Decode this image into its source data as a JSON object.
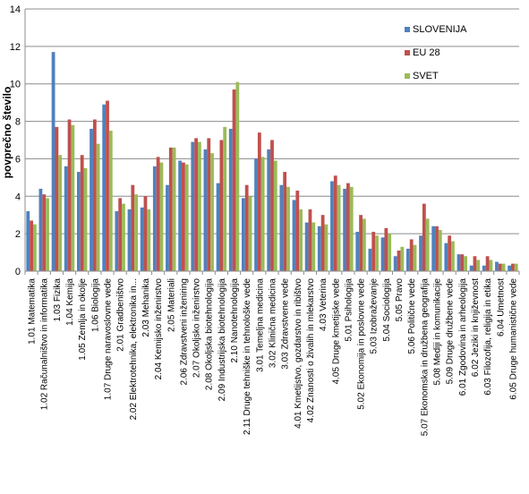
{
  "chart_data": {
    "type": "bar",
    "title": "",
    "xlabel": "",
    "ylabel": "povprečno število",
    "ylim": [
      0,
      14
    ],
    "yticks": [
      0,
      2,
      4,
      6,
      8,
      10,
      12,
      14
    ],
    "grid": true,
    "legend_position": "top-right",
    "categories": [
      "1.01 Matematika",
      "1.02 Računalništvo in informatika",
      "1.03 Fizika",
      "1.04 Kemija",
      "1.05 Zemlja in okolje",
      "1.06 Biologija",
      "1.07 Druge naravoslovne vede",
      "2.01 Gradbeništvo",
      "2.02 Elektrotehnika, elektronika in...",
      "2.03 Mehanika",
      "2.04 Kemijsko inženirstvo",
      "2.05 Materiali",
      "2.06 Zdravstveni inženiring",
      "2.07 Okoljsko inženirstvo",
      "2.08 Okoljska biotehnologija",
      "2.09 Industrijska biotehnologija",
      "2.10 Nanotehnologija",
      "2.11 Druge tehniške in tehnološke vede",
      "3.01 Temeljna medicina",
      "3.02 Klinična medicina",
      "3.03 Zdravstvene vede",
      "4.01 Kmetijstvo, gozdarstvo in ribištvo",
      "4.02 Znanosti o živalih in mlekarstvo",
      "4.03 Veterina",
      "4.05 Druge kmetijske vede",
      "5.01 Psihologija",
      "5.02 Ekonomija in poslovne vede",
      "5.03 Izobraževanje",
      "5.04 Sociologija",
      "5.05 Pravo",
      "5.06 Politične vede",
      "5.07 Ekonomska in družbena geografija",
      "5.08 Mediji in komunikacije",
      "5.09 Druge družbene vede",
      "6.01 Zgodovina in arheologija",
      "6.02 Jeziki in književnost",
      "6.03 Filozofija, religija in etika",
      "6.04 Umetnost",
      "6.05 Druge humanistične vede"
    ],
    "series": [
      {
        "name": "SLOVENIJA",
        "color": "#4F81BD",
        "values": [
          3.2,
          4.4,
          11.7,
          5.6,
          5.3,
          7.6,
          8.9,
          3.2,
          3.3,
          3.4,
          5.6,
          4.6,
          5.9,
          6.9,
          6.5,
          4.7,
          7.6,
          3.9,
          6.0,
          6.5,
          4.6,
          3.8,
          2.6,
          2.4,
          4.8,
          4.4,
          2.1,
          1.2,
          1.8,
          0.8,
          1.2,
          1.9,
          2.4,
          1.5,
          0.9,
          0.3,
          0.3,
          0.5,
          0.3
        ]
      },
      {
        "name": "EU 28",
        "color": "#C0504D",
        "values": [
          2.7,
          4.1,
          7.7,
          8.1,
          6.2,
          8.1,
          9.1,
          3.9,
          4.6,
          4.0,
          6.1,
          6.6,
          5.8,
          7.1,
          7.1,
          7.0,
          9.7,
          4.6,
          7.4,
          7.0,
          5.3,
          4.3,
          3.3,
          3.0,
          5.1,
          4.7,
          3.0,
          2.1,
          2.3,
          1.1,
          1.7,
          3.6,
          2.4,
          1.9,
          0.9,
          0.8,
          0.8,
          0.4,
          0.4
        ]
      },
      {
        "name": "SVET",
        "color": "#9BBB59",
        "values": [
          2.5,
          3.9,
          6.2,
          7.8,
          5.5,
          6.8,
          7.5,
          3.6,
          4.1,
          3.3,
          5.8,
          6.6,
          5.7,
          6.9,
          6.3,
          7.7,
          10.1,
          4.0,
          6.1,
          5.9,
          4.5,
          3.3,
          2.6,
          2.5,
          4.6,
          4.5,
          2.8,
          1.9,
          2.0,
          1.3,
          1.4,
          2.8,
          2.2,
          1.6,
          0.8,
          0.6,
          0.6,
          0.4,
          0.4
        ]
      }
    ]
  }
}
